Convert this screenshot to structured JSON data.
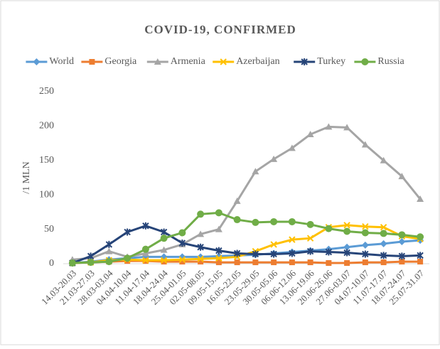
{
  "chart_data": {
    "type": "line",
    "title": "COVID-19, CONFIRMED",
    "y_label": "/1 MLN",
    "categories": [
      "14.03-20.03",
      "21.03-27.03",
      "28.03-03.04",
      "04.04-10.04",
      "11.04-17.04",
      "18.04-24.04",
      "25.04-01.05",
      "02.05-08.05",
      "09.05-15.05",
      "16.05-22.05",
      "23.05-29.05",
      "30.05-05.06",
      "06.06-12.06",
      "13.06-19.06",
      "20.06-26.06",
      "27.06-03.07",
      "04.07-10.07",
      "11.07-17.07",
      "18.07-24.07",
      "25.07-31.07"
    ],
    "series": [
      {
        "name": "World",
        "color": "#5b9bd5",
        "marker": "diamond",
        "values": [
          1,
          3,
          6,
          8,
          10,
          10,
          10,
          10,
          11,
          12,
          13,
          15,
          17,
          19,
          21,
          24,
          27,
          29,
          32,
          34
        ]
      },
      {
        "name": "Georgia",
        "color": "#ed7d31",
        "marker": "square",
        "values": [
          1,
          2,
          3,
          4,
          4,
          3,
          3,
          3,
          2,
          2,
          2,
          2,
          2,
          2,
          1,
          1,
          2,
          2,
          3,
          3
        ]
      },
      {
        "name": "Armenia",
        "color": "#a5a5a5",
        "marker": "triangle",
        "values": [
          6,
          8,
          18,
          10,
          15,
          20,
          28,
          43,
          50,
          91,
          134,
          152,
          168,
          188,
          199,
          198,
          173,
          150,
          127,
          94
        ]
      },
      {
        "name": "Azerbaijan",
        "color": "#ffc000",
        "marker": "x",
        "values": [
          1,
          2,
          5,
          6,
          5,
          5,
          6,
          7,
          8,
          10,
          18,
          28,
          35,
          37,
          53,
          56,
          54,
          53,
          40,
          36
        ]
      },
      {
        "name": "Turkey",
        "color": "#264478",
        "marker": "star",
        "values": [
          1,
          11,
          28,
          46,
          55,
          46,
          30,
          24,
          19,
          15,
          14,
          14,
          15,
          18,
          17,
          16,
          14,
          12,
          11,
          12
        ]
      },
      {
        "name": "Russia",
        "color": "#70ad47",
        "marker": "circle",
        "values": [
          1,
          2,
          3,
          8,
          21,
          37,
          45,
          72,
          74,
          64,
          60,
          61,
          61,
          57,
          51,
          47,
          45,
          44,
          42,
          39
        ]
      }
    ],
    "ylim": [
      0,
      250
    ],
    "yticks": [
      0,
      50,
      100,
      150,
      200,
      250
    ],
    "grid": false,
    "legend": "top"
  }
}
